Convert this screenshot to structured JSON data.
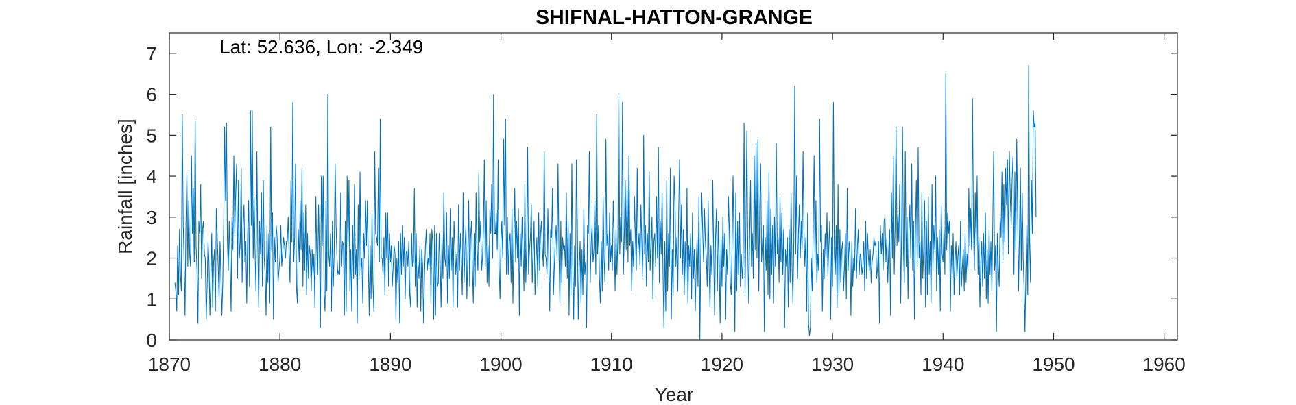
{
  "chart_data": {
    "type": "line",
    "title": "SHIFNAL-HATTON-GRANGE",
    "xlabel": "Year",
    "ylabel": "Rainfall [inches]",
    "annotation": "Lat: 52.636, Lon: -2.349",
    "xlim": [
      1870,
      1961.2
    ],
    "ylim": [
      0,
      7.5
    ],
    "xticks": [
      1870,
      1880,
      1890,
      1900,
      1910,
      1920,
      1930,
      1940,
      1950,
      1960
    ],
    "yticks": [
      0,
      1,
      2,
      3,
      4,
      5,
      6,
      7
    ],
    "grid": false,
    "line_color": "#0072BD",
    "series": [
      {
        "x_start": 1870.5,
        "x_step": 0.08333,
        "values": [
          1.4,
          1.2,
          0.7,
          2.3,
          1.1,
          2.7,
          1.6,
          1.2,
          5.5,
          2.9,
          1.9,
          0.6,
          2.8,
          4.1,
          1.8,
          3.4,
          2.1,
          1.8,
          4.5,
          2.6,
          3.7,
          1.9,
          5.4,
          2.3,
          1.7,
          0.4,
          2.9,
          2.6,
          3.8,
          1.5,
          2.7,
          2.9,
          2.1,
          2.0,
          0.5,
          1.3,
          2.4,
          1.9,
          0.6,
          1.4,
          2.6,
          0.8,
          1.9,
          2.2,
          0.7,
          3.2,
          2.5,
          1.8,
          1.0,
          2.4,
          1.5,
          0.6,
          1.4,
          2.8,
          5.2,
          3.4,
          5.3,
          2.4,
          1.7,
          2.9,
          1.9,
          0.7,
          3.0,
          2.2,
          4.5,
          2.6,
          3.6,
          4.3,
          1.5,
          3.9,
          2.0,
          2.4,
          4.2,
          1.4,
          2.8,
          3.3,
          1.9,
          2.4,
          0.9,
          2.6,
          3.4,
          1.3,
          5.6,
          2.8,
          5.6,
          2.0,
          3.5,
          2.2,
          1.2,
          4.6,
          2.3,
          0.8,
          2.9,
          2.1,
          3.6,
          1.3,
          3.9,
          2.0,
          1.6,
          0.6,
          2.8,
          1.4,
          2.6,
          0.9,
          5.2,
          2.2,
          3.1,
          0.5,
          2.5,
          1.9,
          2.8,
          2.5,
          1.4,
          1.7,
          2.0,
          2.8,
          1.8,
          2.1,
          2.5,
          2.3,
          2.0,
          2.4,
          2.4,
          3.0,
          2.1,
          1.4,
          3.9,
          2.4,
          5.8,
          1.9,
          2.5,
          4.3,
          1.3,
          0.9,
          2.7,
          1.9,
          3.4,
          2.2,
          4.2,
          1.3,
          3.1,
          1.7,
          3.3,
          1.1,
          2.6,
          1.5,
          2.3,
          2.1,
          1.2,
          2.2,
          1.6,
          2.1,
          0.8,
          3.5,
          2.2,
          1.6,
          3.3,
          2.0,
          0.3,
          4.0,
          2.3,
          4.0,
          1.1,
          0.7,
          3.4,
          1.2,
          6.0,
          2.1,
          1.8,
          2.6,
          0.7,
          2.9,
          1.3,
          2.2,
          4.3,
          2.8,
          2.0,
          1.6,
          1.7,
          1.6,
          3.6,
          1.8,
          2.4,
          2.3,
          0.6,
          2.9,
          0.7,
          4.0,
          2.3,
          3.9,
          1.2,
          2.2,
          0.7,
          2.8,
          1.5,
          3.8,
          1.6,
          2.2,
          0.4,
          3.3,
          1.5,
          4.1,
          1.7,
          2.0,
          0.9,
          2.6,
          2.0,
          3.4,
          2.3,
          3.4,
          1.9,
          0.6,
          2.3,
          1.0,
          3.1,
          1.4,
          0.7,
          4.6,
          2.6,
          2.5,
          2.3,
          4.2,
          1.9,
          5.4,
          2.0,
          2.0,
          1.6,
          2.5,
          1.1,
          3.1,
          2.0,
          3.1,
          1.3,
          2.6,
          1.9,
          2.3,
          1.3,
          1.8,
          2.3,
          2.1,
          0.5,
          2.0,
          1.4,
          2.4,
          0.4,
          2.6,
          1.6,
          2.8,
          1.8,
          2.5,
          1.0,
          2.1,
          2.2,
          1.8,
          2.4,
          1.1,
          0.8,
          2.6,
          1.8,
          1.9,
          3.7,
          1.3,
          2.6,
          0.8,
          1.9,
          1.5,
          2.3,
          0.7,
          2.2,
          1.8,
          0.4,
          1.6,
          2.3,
          2.7,
          1.7,
          2.0,
          1.8,
          2.6,
          0.9,
          2.7,
          2.4,
          0.5,
          2.8,
          0.6,
          2.6,
          1.3,
          1.4,
          2.6,
          1.9,
          0.8,
          2.5,
          1.5,
          3.6,
          2.0,
          1.8,
          3.1,
          0.9,
          2.3,
          1.5,
          3.2,
          1.7,
          2.5,
          0.8,
          2.9,
          2.3,
          1.6,
          2.1,
          0.8,
          3.3,
          1.7,
          2.6,
          2.0,
          1.1,
          3.6,
          1.4,
          2.3,
          2.8,
          1.0,
          2.0,
          3.4,
          1.3,
          2.5,
          2.9,
          1.8,
          0.9,
          2.6,
          1.3,
          3.6,
          2.2,
          1.7,
          4.1,
          2.4,
          2.9,
          1.7,
          2.0,
          2.7,
          4.4,
          1.8,
          3.4,
          1.4,
          2.3,
          1.3,
          3.2,
          2.6,
          3.8,
          2.0,
          6.0,
          2.6,
          2.6,
          3.1,
          2.2,
          4.4,
          1.8,
          1.0,
          2.4,
          2.9,
          2.0,
          4.9,
          2.8,
          5.4,
          1.6,
          3.0,
          1.6,
          2.4,
          2.6,
          1.4,
          3.2,
          0.9,
          2.4,
          3.7,
          1.9,
          2.9,
          2.0,
          3.2,
          0.6,
          2.6,
          1.8,
          3.0,
          2.2,
          1.2,
          3.8,
          1.4,
          2.3,
          4.7,
          1.6,
          2.2,
          2.5,
          3.3,
          1.4,
          2.1,
          2.9,
          1.1,
          1.9,
          2.5,
          1.3,
          3.1,
          1.7,
          2.6,
          2.9,
          2.2,
          1.8,
          4.6,
          2.1,
          2.0,
          1.6,
          3.2,
          1.9,
          0.7,
          2.7,
          2.5,
          3.7,
          1.1,
          1.8,
          2.4,
          2.8,
          2.0,
          4.3,
          2.2,
          0.9,
          2.9,
          1.4,
          2.5,
          2.2,
          2.3,
          1.8,
          3.6,
          1.5,
          2.9,
          0.6,
          2.6,
          1.1,
          4.3,
          1.9,
          0.5,
          2.3,
          1.3,
          4.4,
          2.8,
          0.5,
          1.7,
          2.4,
          0.9,
          2.2,
          1.1,
          3.2,
          1.6,
          1.9,
          0.3,
          2.8,
          2.6,
          4.6,
          1.4,
          2.4,
          2.8,
          1.9,
          2.2,
          3.4,
          1.6,
          5.5,
          2.1,
          2.8,
          1.5,
          0.9,
          2.4,
          1.2,
          3.5,
          2.0,
          1.4,
          4.9,
          2.3,
          2.6,
          1.7,
          3.1,
          1.9,
          2.3,
          1.7,
          3.4,
          2.5,
          1.2,
          2.7,
          1.6,
          2.5,
          6.0,
          2.1,
          3.0,
          2.4,
          5.8,
          1.6,
          2.6,
          3.9,
          2.2,
          3.7,
          1.9,
          4.5,
          2.3,
          2.7,
          1.2,
          2.4,
          1.8,
          3.5,
          2.5,
          1.7,
          4.2,
          2.2,
          2.6,
          1.8,
          3.3,
          2.4,
          1.5,
          5.0,
          2.1,
          2.8,
          1.3,
          2.6,
          1.9,
          4.1,
          1.7,
          2.3,
          3.0,
          1.0,
          2.4,
          2.6,
          1.8,
          3.5,
          2.0,
          4.7,
          1.4,
          2.9,
          2.1,
          3.6,
          1.6,
          0.3,
          2.4,
          0.7,
          3.9,
          1.2,
          2.6,
          1.8,
          4.2,
          0.5,
          2.2,
          1.1,
          4.0,
          3.4,
          1.8,
          2.5,
          1.2,
          3.1,
          4.4,
          2.0,
          3.3,
          1.6,
          2.7,
          1.1,
          2.4,
          1.4,
          3.7,
          0.9,
          2.3,
          1.8,
          2.6,
          1.0,
          3.1,
          1.5,
          2.2,
          0.7,
          1.8,
          2.5,
          1.3,
          3.5,
          0.0,
          2.2,
          3.6,
          2.7,
          1.9,
          3.2,
          2.4,
          2.0,
          1.3,
          3.4,
          1.8,
          0.8,
          2.3,
          1.6,
          3.9,
          2.1,
          0.6,
          2.5,
          3.2,
          1.2,
          2.9,
          1.9,
          0.4,
          2.5,
          1.3,
          3.0,
          1.8,
          2.6,
          0.5,
          2.2,
          1.6,
          3.5,
          2.7,
          1.4,
          1.1,
          2.3,
          4.0,
          2.4,
          0.2,
          3.6,
          1.2,
          2.9,
          1.6,
          3.1,
          1.3,
          2.1,
          1.5,
          1.9,
          5.3,
          1.1,
          2.8,
          5.1,
          2.3,
          0.9,
          2.4,
          3.9,
          1.8,
          2.6,
          1.5,
          4.5,
          2.2,
          4.8,
          2.0,
          4.9,
          1.2,
          3.2,
          4.3,
          1.9,
          2.4,
          2.8,
          0.2,
          2.5,
          1.7,
          3.4,
          1.1,
          4.1,
          1.0,
          3.2,
          1.6,
          2.8,
          0.9,
          3.0,
          1.8,
          4.8,
          2.1,
          2.5,
          1.4,
          3.5,
          1.9,
          3.1,
          1.6,
          2.7,
          0.3,
          2.2,
          1.8,
          2.5,
          0.8,
          2.7,
          1.4,
          3.6,
          1.9,
          0.9,
          2.4,
          6.2,
          2.1,
          4.0,
          1.5,
          2.6,
          3.3,
          2.0,
          2.9,
          2.2,
          4.6,
          2.7,
          1.8,
          2.5,
          0.7,
          3.1,
          0.4,
          0.1,
          0.3,
          2.0,
          1.2,
          2.6,
          4.5,
          1.9,
          3.4,
          1.4,
          2.1,
          1.7,
          5.4,
          2.4,
          2.8,
          0.7,
          2.2,
          1.5,
          2.6,
          2.0,
          3.1,
          1.6,
          2.3,
          2.9,
          0.5,
          2.5,
          1.3,
          5.8,
          2.1,
          1.6,
          2.8,
          0.8,
          3.8,
          1.1,
          2.7,
          1.4,
          2.2,
          2.4,
          1.2,
          1.8,
          2.6,
          1.0,
          3.7,
          1.7,
          2.4,
          2.1,
          0.6,
          2.4,
          1.3,
          2.0,
          1.7,
          3.2,
          1.5,
          2.3,
          2.7,
          1.6,
          2.1,
          2.0,
          1.6,
          1.8,
          2.4,
          1.2,
          2.9,
          1.5,
          2.6,
          2.0,
          1.7,
          2.2,
          1.4,
          1.9,
          2.1,
          2.5,
          2.3,
          2.4,
          1.5,
          1.8,
          2.4,
          0.4,
          2.8,
          2.1,
          2.6,
          1.7,
          2.9,
          3.0,
          1.9,
          2.5,
          1.4,
          2.2,
          2.7,
          0.6,
          3.6,
          2.0,
          4.5,
          1.6,
          2.8,
          5.2,
          2.3,
          3.1,
          2.4,
          3.8,
          0.9,
          2.6,
          5.2,
          2.2,
          1.4,
          4.6,
          1.8,
          3.0,
          1.0,
          2.7,
          3.3,
          2.0,
          4.3,
          1.7,
          2.9,
          0.5,
          2.6,
          3.9,
          1.8,
          4.7,
          2.0,
          2.4,
          1.1,
          3.6,
          1.5,
          2.2,
          3.4,
          0.8,
          2.9,
          1.1,
          3.5,
          1.6,
          2.4,
          0.9,
          3.8,
          1.7,
          2.8,
          2.2,
          4.0,
          1.2,
          2.5,
          1.6,
          2.7,
          0.7,
          3.3,
          2.1,
          1.9,
          2.7,
          1.6,
          6.5,
          2.2,
          3.1,
          2.6,
          2.9,
          0.7,
          2.3,
          1.6,
          2.6,
          1.1,
          1.9,
          2.4,
          1.5,
          2.0,
          2.3,
          1.1,
          2.9,
          1.3,
          1.8,
          2.2,
          1.2,
          2.6,
          1.4,
          2.1,
          1.7,
          3.7,
          2.3,
          3.2,
          2.2,
          5.9,
          2.8,
          1.7,
          3.6,
          2.3,
          4.0,
          1.6,
          2.5,
          0.8,
          1.9,
          2.4,
          1.3,
          2.6,
          1.5,
          3.1,
          1.0,
          2.2,
          0.9,
          2.7,
          1.6,
          2.4,
          1.2,
          2.8,
          4.6,
          1.7,
          2.3,
          0.2,
          2.6,
          1.8,
          1.3,
          3.0,
          2.5,
          4.1,
          1.9,
          3.8,
          2.4,
          4.2,
          3.3,
          4.4,
          2.1,
          4.6,
          3.5,
          2.8,
          3.9,
          4.5,
          1.6,
          4.1,
          2.2,
          4.9,
          3.1,
          1.2,
          2.6,
          4.2,
          1.7,
          3.6,
          2.0,
          1.3,
          0.2,
          1.6,
          2.8,
          1.1,
          6.7,
          2.4,
          1.4,
          3.9,
          2.6,
          5.6,
          5.2,
          5.3,
          3.0
        ]
      }
    ]
  }
}
